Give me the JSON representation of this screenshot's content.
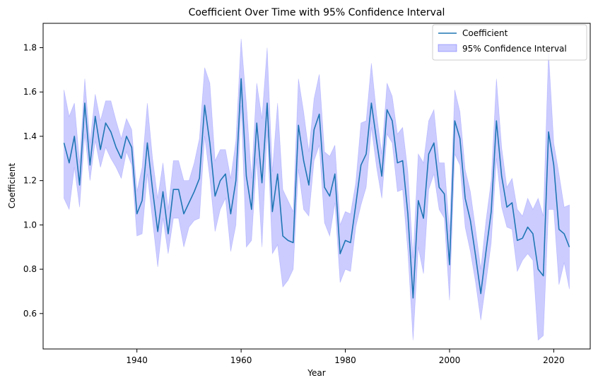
{
  "chart_data": {
    "type": "line",
    "title": "Coefficient Over Time with 95% Confidence Interval",
    "xlabel": "Year",
    "ylabel": "Coefficient",
    "xlim": [
      1922,
      2027
    ],
    "ylim": [
      0.44,
      1.91
    ],
    "x_ticks": [
      1940,
      1960,
      1980,
      2000,
      2020
    ],
    "x_tick_labels": [
      "1940",
      "1960",
      "1980",
      "2000",
      "2020"
    ],
    "y_ticks": [
      0.6,
      0.8,
      1.0,
      1.2,
      1.4,
      1.6,
      1.8
    ],
    "y_tick_labels": [
      "0.6",
      "0.8",
      "1.0",
      "1.2",
      "1.4",
      "1.6",
      "1.8"
    ],
    "grid": false,
    "legend_position": "top-right",
    "legend": [
      "Coefficient",
      "95% Confidence Interval"
    ],
    "colors": {
      "line": "#1f77b4",
      "band_fill": "#0000ff",
      "band_opacity": 0.2
    },
    "x": [
      1926,
      1927,
      1928,
      1929,
      1930,
      1931,
      1932,
      1933,
      1934,
      1935,
      1936,
      1937,
      1938,
      1939,
      1940,
      1941,
      1942,
      1943,
      1944,
      1945,
      1946,
      1947,
      1948,
      1949,
      1950,
      1951,
      1952,
      1953,
      1954,
      1955,
      1956,
      1957,
      1958,
      1959,
      1960,
      1961,
      1962,
      1963,
      1964,
      1965,
      1966,
      1967,
      1968,
      1969,
      1970,
      1971,
      1972,
      1973,
      1974,
      1975,
      1976,
      1977,
      1978,
      1979,
      1980,
      1981,
      1982,
      1983,
      1984,
      1985,
      1986,
      1987,
      1988,
      1989,
      1990,
      1991,
      1992,
      1993,
      1994,
      1995,
      1996,
      1997,
      1998,
      1999,
      2000,
      2001,
      2002,
      2003,
      2004,
      2005,
      2006,
      2007,
      2008,
      2009,
      2010,
      2011,
      2012,
      2013,
      2014,
      2015,
      2016,
      2017,
      2018,
      2019,
      2020,
      2021,
      2022,
      2023
    ],
    "series": [
      {
        "name": "Coefficient",
        "values": [
          1.37,
          1.28,
          1.4,
          1.18,
          1.55,
          1.27,
          1.49,
          1.34,
          1.46,
          1.42,
          1.35,
          1.3,
          1.4,
          1.35,
          1.05,
          1.11,
          1.37,
          1.16,
          0.97,
          1.15,
          0.96,
          1.16,
          1.16,
          1.05,
          1.1,
          1.15,
          1.21,
          1.54,
          1.37,
          1.13,
          1.2,
          1.23,
          1.05,
          1.2,
          1.66,
          1.22,
          1.07,
          1.46,
          1.19,
          1.55,
          1.06,
          1.23,
          0.95,
          0.93,
          0.92,
          1.45,
          1.29,
          1.18,
          1.43,
          1.5,
          1.17,
          1.13,
          1.23,
          0.87,
          0.93,
          0.92,
          1.09,
          1.27,
          1.32,
          1.55,
          1.38,
          1.22,
          1.52,
          1.47,
          1.28,
          1.29,
          1.05,
          0.67,
          1.11,
          1.03,
          1.32,
          1.37,
          1.17,
          1.14,
          0.82,
          1.47,
          1.39,
          1.12,
          1.02,
          0.86,
          0.69,
          0.88,
          1.06,
          1.47,
          1.22,
          1.08,
          1.1,
          0.93,
          0.94,
          0.99,
          0.96,
          0.8,
          0.77,
          1.42,
          1.27,
          0.98,
          0.96,
          0.9
        ]
      }
    ],
    "ci_lower": [
      1.12,
      1.07,
      1.26,
      1.08,
      1.41,
      1.2,
      1.38,
      1.26,
      1.35,
      1.3,
      1.26,
      1.21,
      1.33,
      1.27,
      0.95,
      0.96,
      1.23,
      1.02,
      0.81,
      1.03,
      0.87,
      1.03,
      1.03,
      0.9,
      0.99,
      1.02,
      1.03,
      1.4,
      1.21,
      0.97,
      1.07,
      1.12,
      0.88,
      1.0,
      1.54,
      0.9,
      0.93,
      1.3,
      0.9,
      1.43,
      0.87,
      0.91,
      0.72,
      0.75,
      0.8,
      1.25,
      1.07,
      1.04,
      1.29,
      1.36,
      1.01,
      0.95,
      1.1,
      0.74,
      0.8,
      0.79,
      0.99,
      1.09,
      1.17,
      1.44,
      1.26,
      1.12,
      1.41,
      1.37,
      1.15,
      1.16,
      0.88,
      0.48,
      0.9,
      0.78,
      1.16,
      1.23,
      1.07,
      1.03,
      0.66,
      1.32,
      1.27,
      0.99,
      0.88,
      0.74,
      0.57,
      0.74,
      0.92,
      1.3,
      1.08,
      0.99,
      0.98,
      0.79,
      0.84,
      0.87,
      0.84,
      0.48,
      0.5,
      1.07,
      1.07,
      0.73,
      0.83,
      0.71
    ],
    "ci_upper": [
      1.61,
      1.49,
      1.55,
      1.28,
      1.66,
      1.37,
      1.59,
      1.47,
      1.56,
      1.56,
      1.47,
      1.39,
      1.48,
      1.43,
      1.15,
      1.26,
      1.55,
      1.3,
      1.12,
      1.28,
      1.07,
      1.29,
      1.29,
      1.2,
      1.2,
      1.28,
      1.39,
      1.71,
      1.64,
      1.29,
      1.34,
      1.34,
      1.21,
      1.38,
      1.84,
      1.55,
      1.21,
      1.64,
      1.48,
      1.8,
      1.24,
      1.55,
      1.16,
      1.11,
      1.06,
      1.66,
      1.51,
      1.33,
      1.57,
      1.68,
      1.33,
      1.31,
      1.36,
      1.0,
      1.06,
      1.05,
      1.19,
      1.46,
      1.47,
      1.73,
      1.5,
      1.32,
      1.64,
      1.58,
      1.41,
      1.44,
      1.24,
      0.85,
      1.32,
      1.28,
      1.47,
      1.52,
      1.28,
      1.28,
      0.97,
      1.61,
      1.51,
      1.25,
      1.15,
      0.98,
      0.8,
      1.02,
      1.2,
      1.66,
      1.35,
      1.17,
      1.21,
      1.07,
      1.04,
      1.12,
      1.07,
      1.12,
      1.04,
      1.78,
      1.37,
      1.23,
      1.08,
      1.09
    ]
  }
}
